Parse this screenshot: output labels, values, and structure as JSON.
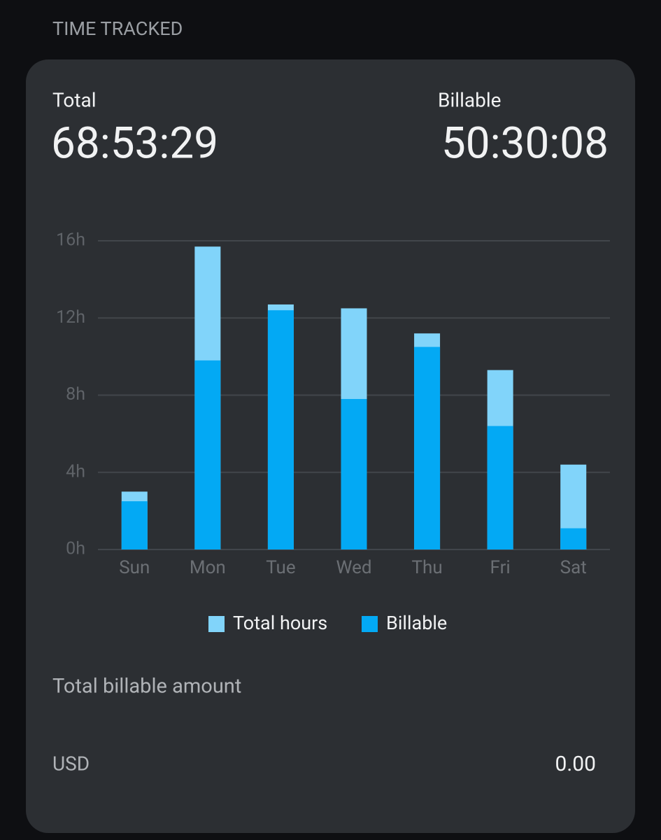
{
  "header": {
    "title": "TIME TRACKED"
  },
  "summary": {
    "total_label": "Total",
    "total_value": "68:53:29",
    "billable_label": "Billable",
    "billable_value": "50:30:08"
  },
  "chart_data": {
    "type": "bar",
    "categories": [
      "Sun",
      "Mon",
      "Tue",
      "Wed",
      "Thu",
      "Fri",
      "Sat"
    ],
    "series": [
      {
        "name": "Total hours",
        "color": "#81d4fa",
        "values": [
          3.0,
          15.7,
          12.7,
          12.5,
          11.2,
          9.3,
          4.4
        ]
      },
      {
        "name": "Billable",
        "color": "#03a9f4",
        "values": [
          2.5,
          9.8,
          12.4,
          7.8,
          10.5,
          6.4,
          1.1
        ]
      }
    ],
    "ylim": [
      0,
      16
    ],
    "yticks": [
      {
        "value": 0,
        "label": "0h"
      },
      {
        "value": 4,
        "label": "4h"
      },
      {
        "value": 8,
        "label": "8h"
      },
      {
        "value": 12,
        "label": "12h"
      },
      {
        "value": 16,
        "label": "16h"
      }
    ],
    "grid": true,
    "legend": "bottom"
  },
  "billable_amount": {
    "title": "Total billable amount",
    "currency": "USD",
    "amount": "0.00"
  }
}
